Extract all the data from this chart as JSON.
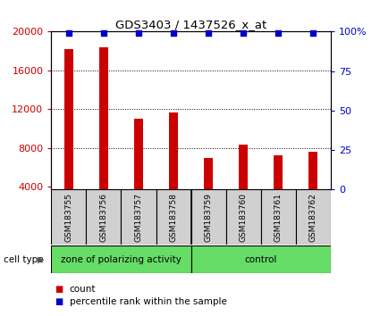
{
  "title": "GDS3403 / 1437526_x_at",
  "samples": [
    "GSM183755",
    "GSM183756",
    "GSM183757",
    "GSM183758",
    "GSM183759",
    "GSM183760",
    "GSM183761",
    "GSM183762"
  ],
  "counts": [
    18200,
    18400,
    11000,
    11700,
    7000,
    8300,
    7200,
    7600
  ],
  "percentile_ranks": [
    99,
    99,
    99,
    99,
    99,
    99,
    99,
    99
  ],
  "group_names": [
    "zone of polarizing activity",
    "control"
  ],
  "group_color": "#66dd66",
  "bar_color": "#cc0000",
  "dot_color": "#0000cc",
  "ylim_left": [
    3700,
    20000
  ],
  "ylim_right": [
    0,
    100
  ],
  "yticks_left": [
    4000,
    8000,
    12000,
    16000,
    20000
  ],
  "yticks_right": [
    0,
    25,
    50,
    75,
    100
  ],
  "plot_bg": "#ffffff",
  "sample_box_color": "#d0d0d0",
  "left_tick_color": "#cc0000",
  "right_tick_color": "#0000cc",
  "legend_count_label": "count",
  "legend_pct_label": "percentile rank within the sample",
  "cell_type_label": "cell type",
  "separator_index": 4,
  "bar_width": 0.25
}
